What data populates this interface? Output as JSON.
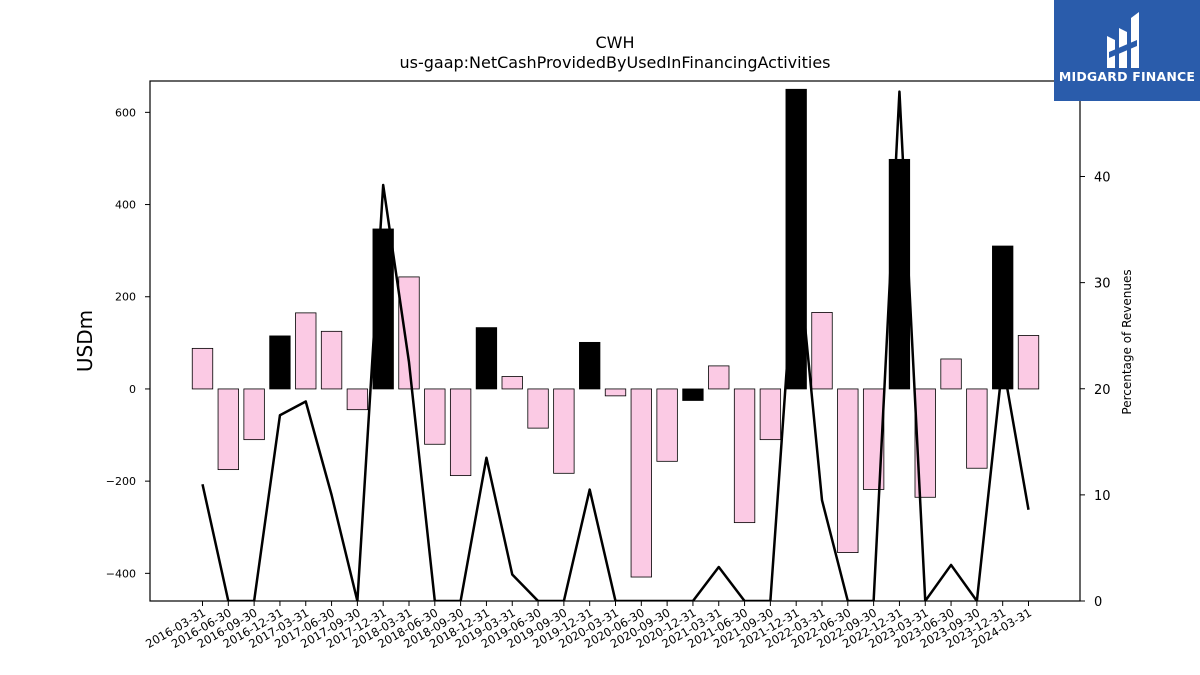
{
  "chart_data": {
    "type": "bar",
    "title": "CWH",
    "subtitle": "us-gaap:NetCashProvidedByUsedInFinancingActivities",
    "ylabel": "USDm",
    "y2label": "Percentage of Revenues",
    "ylim": [
      -460,
      668
    ],
    "y2lim": [
      0,
      49
    ],
    "yticks": [
      -400,
      -200,
      0,
      200,
      400,
      600
    ],
    "y2ticks": [
      0,
      10,
      20,
      30,
      40
    ],
    "categories": [
      "2016-03-31",
      "2016-06-30",
      "2016-09-30",
      "2016-12-31",
      "2017-03-31",
      "2017-06-30",
      "2017-09-30",
      "2017-12-31",
      "2018-03-31",
      "2018-06-30",
      "2018-09-30",
      "2018-12-31",
      "2019-03-31",
      "2019-06-30",
      "2019-09-30",
      "2019-12-31",
      "2020-03-31",
      "2020-06-30",
      "2020-09-30",
      "2020-12-31",
      "2021-03-31",
      "2021-06-30",
      "2021-09-30",
      "2021-12-31",
      "2022-03-31",
      "2022-06-30",
      "2022-09-30",
      "2022-12-31",
      "2023-03-31",
      "2023-06-30",
      "2023-09-30",
      "2023-12-31",
      "2024-03-31"
    ],
    "series": [
      {
        "values": [
          88,
          -175,
          -110,
          115,
          165,
          125,
          -45,
          347,
          243,
          -120,
          -188,
          133,
          27,
          -85,
          -183,
          101,
          -15,
          -408,
          -157,
          -25,
          50,
          -290,
          -110,
          650,
          166,
          -355,
          -218,
          498,
          -235,
          65,
          -172,
          310,
          116
        ],
        "highlight": [
          false,
          false,
          false,
          true,
          false,
          false,
          false,
          true,
          false,
          false,
          false,
          true,
          false,
          false,
          false,
          true,
          false,
          false,
          false,
          true,
          false,
          false,
          false,
          true,
          false,
          false,
          false,
          true,
          false,
          false,
          false,
          true,
          false
        ]
      },
      {
        "axis": "right",
        "values": [
          11,
          0,
          0,
          17.5,
          18.8,
          10,
          0,
          39.2,
          22.5,
          0,
          0,
          13.5,
          2.5,
          0,
          0,
          10.5,
          0,
          0,
          0,
          0,
          3.2,
          0,
          0,
          34.5,
          9.5,
          0,
          0,
          48,
          0,
          3.4,
          0,
          22.5,
          8.6
        ]
      }
    ],
    "colors": {
      "bar_positive_q4": "#000000",
      "bar_other": "#fbcae4",
      "bar_edge": "#000000",
      "line": "#000000"
    },
    "grid": false,
    "legend": "none"
  },
  "brand": {
    "name": "MIDGARD FINANCE",
    "color": "#2a5cab"
  }
}
